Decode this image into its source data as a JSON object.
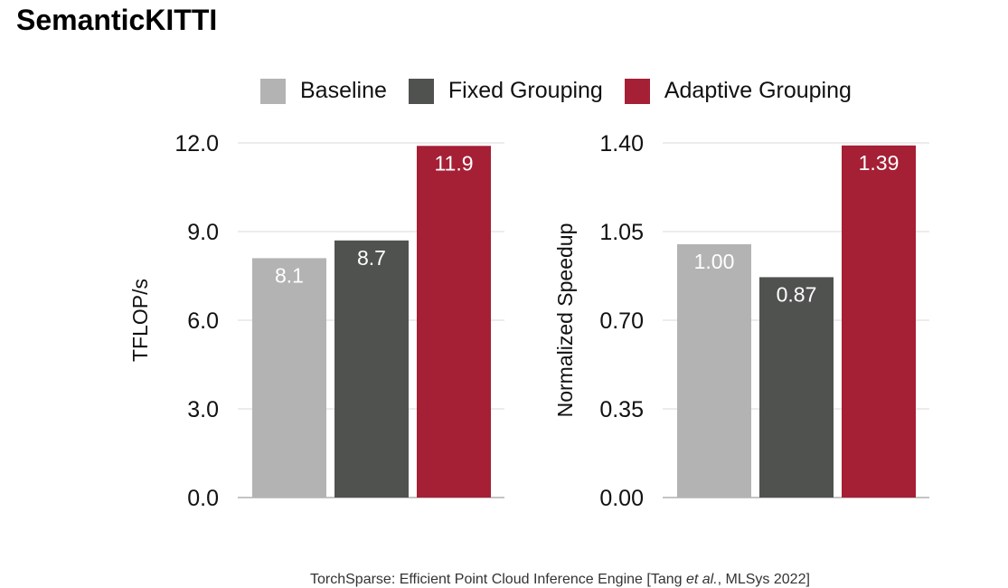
{
  "page_title": "SemanticKITTI",
  "footer": {
    "prefix": "TorchSparse: Efficient Point Cloud Inference Engine [Tang ",
    "italic": "et al.",
    "suffix": ", MLSys 2022]"
  },
  "legend": [
    {
      "label": "Baseline",
      "color": "#b3b3b3"
    },
    {
      "label": "Fixed Grouping",
      "color": "#505250"
    },
    {
      "label": "Adaptive Grouping",
      "color": "#a51f35"
    }
  ],
  "chart_data": [
    {
      "type": "bar",
      "categories": [
        "Baseline",
        "Fixed Grouping",
        "Adaptive Grouping"
      ],
      "values": [
        8.1,
        8.7,
        11.9
      ],
      "data_labels": [
        "8.1",
        "8.7",
        "11.9"
      ],
      "colors": [
        "#b3b3b3",
        "#505250",
        "#a51f35"
      ],
      "title": "",
      "xlabel": "",
      "ylabel": "TFLOP/s",
      "ylim": [
        0,
        12
      ],
      "yticks": [
        "0.0",
        "3.0",
        "6.0",
        "9.0",
        "12.0"
      ],
      "grid": true
    },
    {
      "type": "bar",
      "categories": [
        "Baseline",
        "Fixed Grouping",
        "Adaptive Grouping"
      ],
      "values": [
        1.0,
        0.87,
        1.39
      ],
      "data_labels": [
        "1.00",
        "0.87",
        "1.39"
      ],
      "colors": [
        "#b3b3b3",
        "#505250",
        "#a51f35"
      ],
      "title": "",
      "xlabel": "",
      "ylabel": "Normalized Speedup",
      "ylim": [
        0,
        1.4
      ],
      "yticks": [
        "0.00",
        "0.35",
        "0.70",
        "1.05",
        "1.40"
      ],
      "grid": true
    }
  ]
}
